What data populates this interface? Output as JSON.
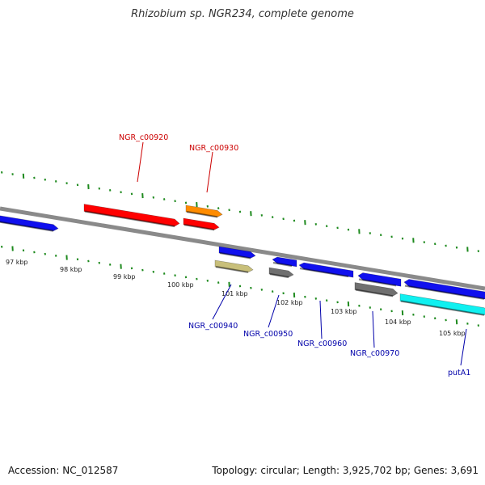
{
  "title": "Rhizobium sp. NGR234, complete genome",
  "footer": {
    "accession": "Accession: NC_012587",
    "stats": "Topology: circular; Length: 3,925,702 bp; Genes: 3,691"
  },
  "colors": {
    "backbone": "#8a8a8a",
    "tick": "#1e8a1e",
    "label_top": "#cc0000",
    "label_bottom": "#0000aa"
  },
  "kbp_labels": [
    "97 kbp",
    "98 kbp",
    "99 kbp",
    "100 kbp",
    "101 kbp",
    "102 kbp",
    "103 kbp",
    "104 kbp",
    "105 kbp"
  ],
  "genes": [
    {
      "name": "",
      "color": "#1010ee",
      "strand": "forward"
    },
    {
      "name": "NGR_c00920",
      "color": "#ff0000",
      "strand": "forward"
    },
    {
      "name": "NGR_c00930",
      "color": "#ff8c00",
      "strand": "forward"
    },
    {
      "name": "",
      "color": "#ff0000",
      "strand": "forward"
    },
    {
      "name": "NGR_c00940",
      "color": "#1010ee",
      "strand": "forward"
    },
    {
      "name": "",
      "color": "#c8bf7a",
      "strand": "forward"
    },
    {
      "name": "NGR_c00950",
      "color": "#1010ee",
      "strand": "reverse"
    },
    {
      "name": "",
      "color": "#707070",
      "strand": "forward"
    },
    {
      "name": "NGR_c00960",
      "color": "#1010ee",
      "strand": "reverse"
    },
    {
      "name": "NGR_c00970",
      "color": "#1010ee",
      "strand": "reverse"
    },
    {
      "name": "",
      "color": "#707070",
      "strand": "forward"
    },
    {
      "name": "",
      "color": "#1010ee",
      "strand": "reverse"
    },
    {
      "name": "putA1",
      "color": "#10f0f0",
      "strand": "forward"
    }
  ]
}
